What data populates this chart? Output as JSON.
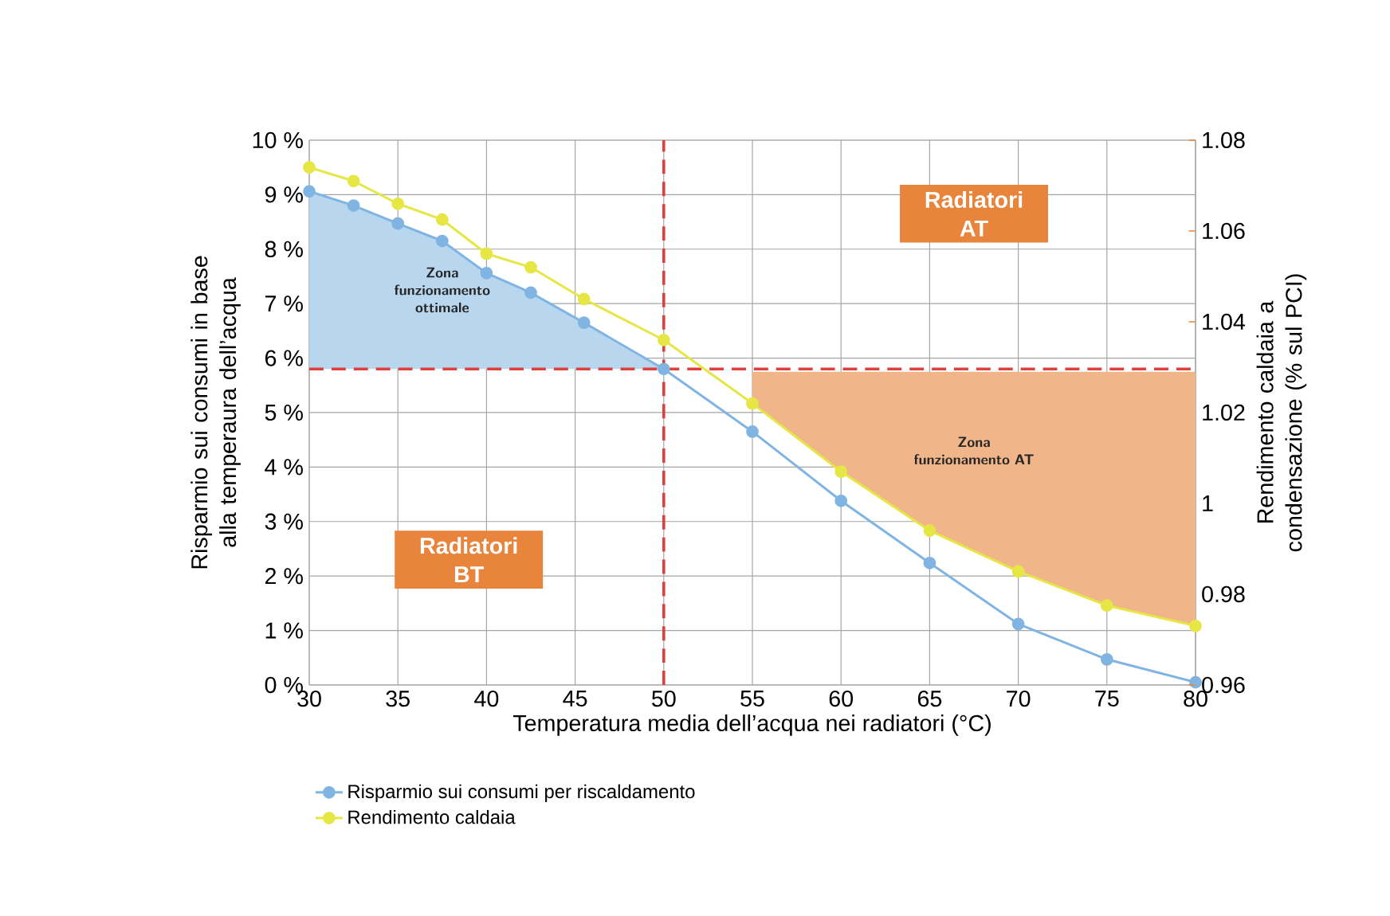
{
  "chart_data": {
    "type": "line",
    "xlabel": "Temperatura media dell’acqua nei radiatori (°C)",
    "ylabel": "Risparmio sui consumi in base alla temperaura dell’acqua",
    "y2label": "Rendimento caldaia a condensazione (% sul PCI)",
    "x": [
      30,
      32.5,
      35,
      37.5,
      40,
      42.5,
      45.5,
      50,
      55,
      60,
      65,
      70,
      75,
      80
    ],
    "series": [
      {
        "name": "Risparmio sui consumi per riscaldamento",
        "color": "#80b4e2",
        "values": [
          9.06,
          8.8,
          8.47,
          8.15,
          7.56,
          7.2,
          6.65,
          5.8,
          4.65,
          3.38,
          2.24,
          1.12,
          0.47,
          0.05
        ],
        "lower": [
          5.8,
          5.8,
          5.8,
          5.8,
          5.8,
          5.8,
          5.8,
          5.8,
          null,
          null,
          null,
          null,
          null,
          null
        ],
        "upper": [
          9.06,
          8.8,
          8.47,
          8.15,
          7.56,
          7.2,
          6.65,
          5.8,
          null,
          null,
          null,
          null,
          null,
          null
        ]
      },
      {
        "name": "Rendimento caldaia",
        "color": "#e6e645",
        "axis": "y2",
        "values": [
          1.074,
          1.071,
          1.066,
          1.0625,
          1.055,
          1.052,
          1.045,
          1.036,
          1.022,
          1.007,
          0.994,
          0.985,
          0.9775,
          0.973
        ],
        "lower": [
          null,
          null,
          null,
          null,
          null,
          null,
          null,
          null,
          1.022,
          1.007,
          0.994,
          0.985,
          0.9775,
          0.973
        ],
        "upper": [
          null,
          null,
          null,
          null,
          null,
          null,
          null,
          null,
          1.029,
          1.029,
          1.029,
          1.029,
          1.029,
          1.029
        ]
      }
    ],
    "xlim": [
      30,
      80
    ],
    "xticks": [
      30,
      35,
      40,
      45,
      50,
      55,
      60,
      65,
      70,
      75,
      80
    ],
    "ylim": [
      0,
      10
    ],
    "yticks": [
      {
        "value": 0,
        "label": "0 %"
      },
      {
        "value": 1,
        "label": "1 %"
      },
      {
        "value": 2,
        "label": "2 %"
      },
      {
        "value": 3,
        "label": "3 %"
      },
      {
        "value": 4,
        "label": "4 %"
      },
      {
        "value": 5,
        "label": "5 %"
      },
      {
        "value": 6,
        "label": "6 %"
      },
      {
        "value": 7,
        "label": "7 %"
      },
      {
        "value": 8,
        "label": "8 %"
      },
      {
        "value": 9,
        "label": "9 %"
      },
      {
        "value": 10,
        "label": "10 %"
      }
    ],
    "y2lim": [
      0.96,
      1.08
    ],
    "y2ticks": [
      0.96,
      0.98,
      1,
      1.02,
      1.04,
      1.06,
      1.08
    ],
    "ref_lines": [
      {
        "axis": "x",
        "value": 50,
        "color": "#e0403c",
        "line_style": "dashed"
      },
      {
        "axis": "y",
        "value": 5.8,
        "color": "#e0403c",
        "line_style": "dashed"
      }
    ],
    "annotations": [
      "Zona funzionamento ottimale",
      "Radiatori BT",
      "Radiatori AT",
      "Zona funzionamento AT"
    ],
    "grid": true,
    "legend": "bottom left",
    "marker": "circle",
    "line_style": "solid"
  }
}
